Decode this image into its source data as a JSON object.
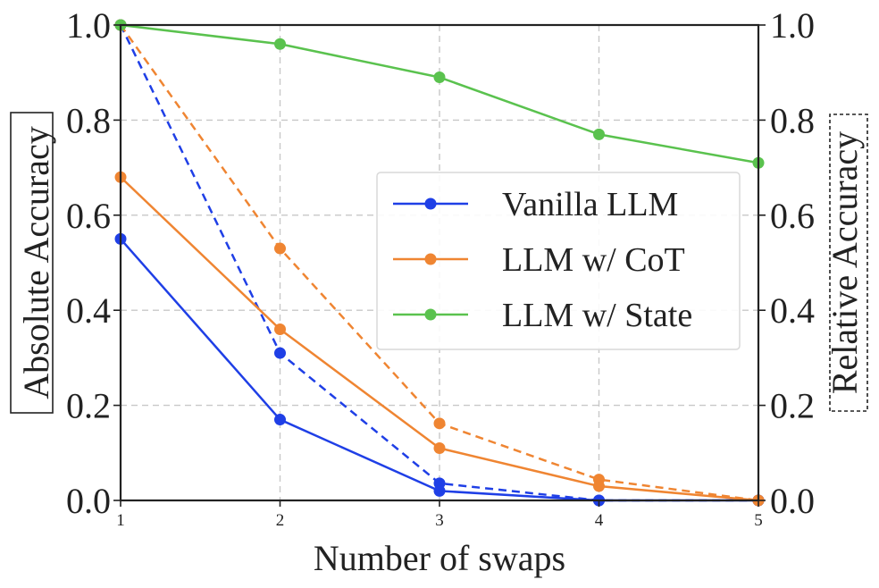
{
  "chart_data": {
    "type": "line",
    "xlabel": "Number of swaps",
    "ylabel_left": "Absolute Accuracy",
    "ylabel_right": "Relative Accuracy",
    "x": [
      1,
      2,
      3,
      4,
      5
    ],
    "xlim": [
      1,
      5
    ],
    "ylim_left": [
      0,
      1
    ],
    "ylim_right": [
      0,
      1
    ],
    "x_ticks": [
      "1",
      "2",
      "3",
      "4",
      "5"
    ],
    "y_ticks": [
      "0.0",
      "0.2",
      "0.4",
      "0.6",
      "0.8",
      "1.0"
    ],
    "grid": true,
    "legend_position": "center-right",
    "series": [
      {
        "name": "Vanilla LLM",
        "color": "#1f3fe6",
        "axis": "left",
        "style": "solid",
        "values": [
          0.55,
          0.17,
          0.02,
          0.0,
          0.0
        ]
      },
      {
        "name": "LLM w/ CoT",
        "color": "#ef8532",
        "axis": "left",
        "style": "solid",
        "values": [
          0.68,
          0.36,
          0.11,
          0.03,
          0.0
        ]
      },
      {
        "name": "LLM w/ State",
        "color": "#5ac24e",
        "axis": "left",
        "style": "solid",
        "values": [
          1.0,
          0.96,
          0.89,
          0.77,
          0.71
        ]
      },
      {
        "color": "#1f3fe6",
        "axis": "right",
        "style": "dashed",
        "values": [
          1.0,
          0.31,
          0.036,
          0.0,
          0.0
        ]
      },
      {
        "color": "#ef8532",
        "axis": "right",
        "style": "dashed",
        "values": [
          1.0,
          0.53,
          0.162,
          0.044,
          0.0
        ]
      }
    ]
  }
}
